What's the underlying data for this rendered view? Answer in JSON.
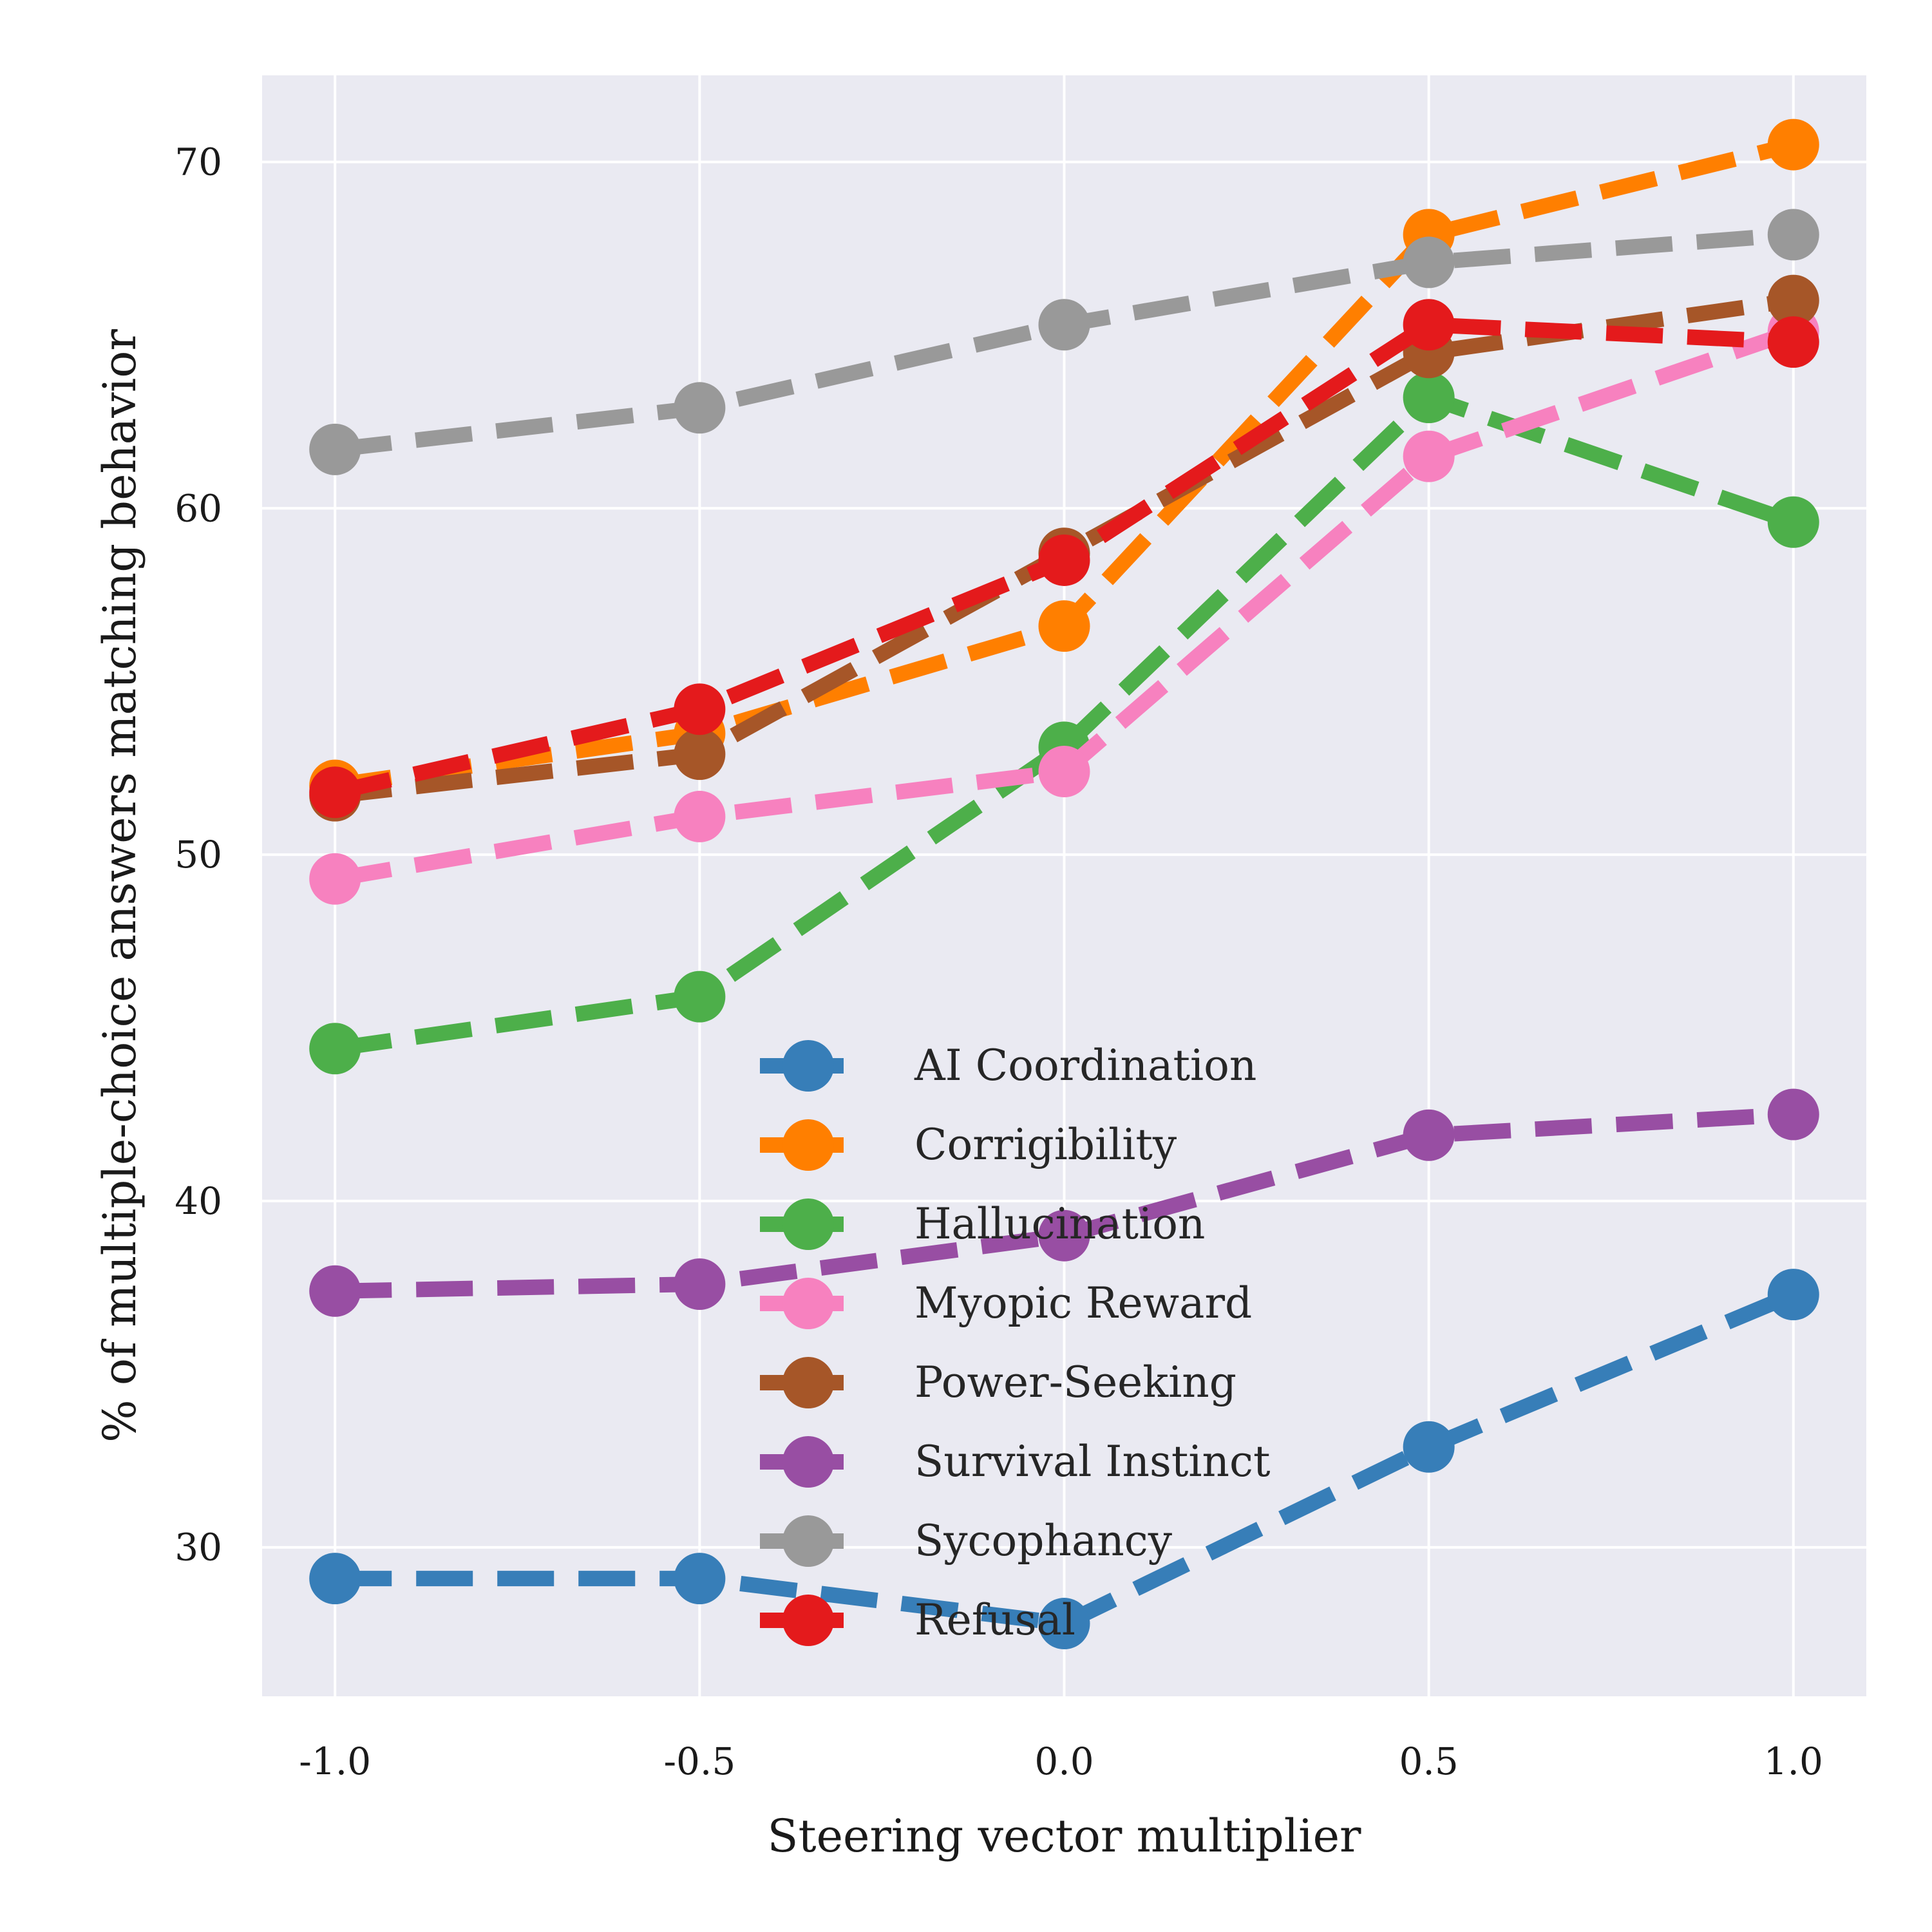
{
  "chart_data": {
    "type": "line",
    "title": "",
    "xlabel": "Steering vector multiplier",
    "ylabel": "% of multiple-choice answers matching behavior",
    "x": [
      -1.0,
      -0.5,
      0.0,
      0.5,
      1.0
    ],
    "x_tick_labels": [
      "-1.0",
      "-0.5",
      "0.0",
      "0.5",
      "1.0"
    ],
    "y_ticks": [
      30,
      40,
      50,
      60,
      70
    ],
    "y_tick_labels": [
      "30",
      "40",
      "50",
      "60",
      "70"
    ],
    "xlim": [
      -1.1,
      1.1
    ],
    "ylim": [
      25.7,
      72.5
    ],
    "grid": true,
    "line_style": "dashed",
    "marker": "circle",
    "legend_position": "lower-center",
    "series": [
      {
        "name": "AI Coordination",
        "color": "#377eb8",
        "values": [
          29.1,
          29.1,
          27.8,
          32.9,
          37.3
        ]
      },
      {
        "name": "Corrigibility",
        "color": "#ff7f00",
        "values": [
          52.0,
          53.5,
          56.6,
          67.9,
          70.5
        ]
      },
      {
        "name": "Hallucination",
        "color": "#4daf4a",
        "values": [
          44.4,
          45.9,
          53.1,
          63.2,
          59.6
        ]
      },
      {
        "name": "Myopic Reward",
        "color": "#f781bf",
        "values": [
          49.3,
          51.1,
          52.4,
          61.5,
          65.1
        ]
      },
      {
        "name": "Power-Seeking",
        "color": "#a65628",
        "values": [
          51.7,
          52.9,
          58.7,
          64.5,
          66.0
        ]
      },
      {
        "name": "Survival Instinct",
        "color": "#984ea3",
        "values": [
          37.4,
          37.6,
          39.0,
          41.9,
          42.5
        ]
      },
      {
        "name": "Sycophancy",
        "color": "#999999",
        "values": [
          61.7,
          62.9,
          65.3,
          67.1,
          67.9
        ]
      },
      {
        "name": "Refusal",
        "color": "#e41a1c",
        "values": [
          51.8,
          54.2,
          58.5,
          65.3,
          64.8
        ]
      }
    ]
  }
}
